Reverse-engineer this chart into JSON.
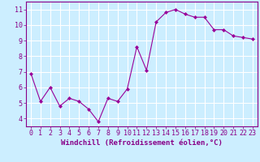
{
  "x": [
    0,
    1,
    2,
    3,
    4,
    5,
    6,
    7,
    8,
    9,
    10,
    11,
    12,
    13,
    14,
    15,
    16,
    17,
    18,
    19,
    20,
    21,
    22,
    23
  ],
  "y": [
    6.9,
    5.1,
    6.0,
    4.8,
    5.3,
    5.1,
    4.6,
    3.8,
    5.3,
    5.1,
    5.9,
    8.6,
    7.1,
    10.2,
    10.8,
    11.0,
    10.7,
    10.5,
    10.5,
    9.7,
    9.7,
    9.3,
    9.2,
    9.1
  ],
  "line_color": "#990099",
  "marker_color": "#990099",
  "bg_color": "#cceeff",
  "grid_color": "#ffffff",
  "xlabel": "Windchill (Refroidissement éolien,°C)",
  "xlim": [
    -0.5,
    23.5
  ],
  "ylim": [
    3.5,
    11.5
  ],
  "yticks": [
    4,
    5,
    6,
    7,
    8,
    9,
    10,
    11
  ],
  "xticks": [
    0,
    1,
    2,
    3,
    4,
    5,
    6,
    7,
    8,
    9,
    10,
    11,
    12,
    13,
    14,
    15,
    16,
    17,
    18,
    19,
    20,
    21,
    22,
    23
  ],
  "xlabel_fontsize": 6.5,
  "tick_fontsize": 6.0,
  "label_color": "#880088"
}
